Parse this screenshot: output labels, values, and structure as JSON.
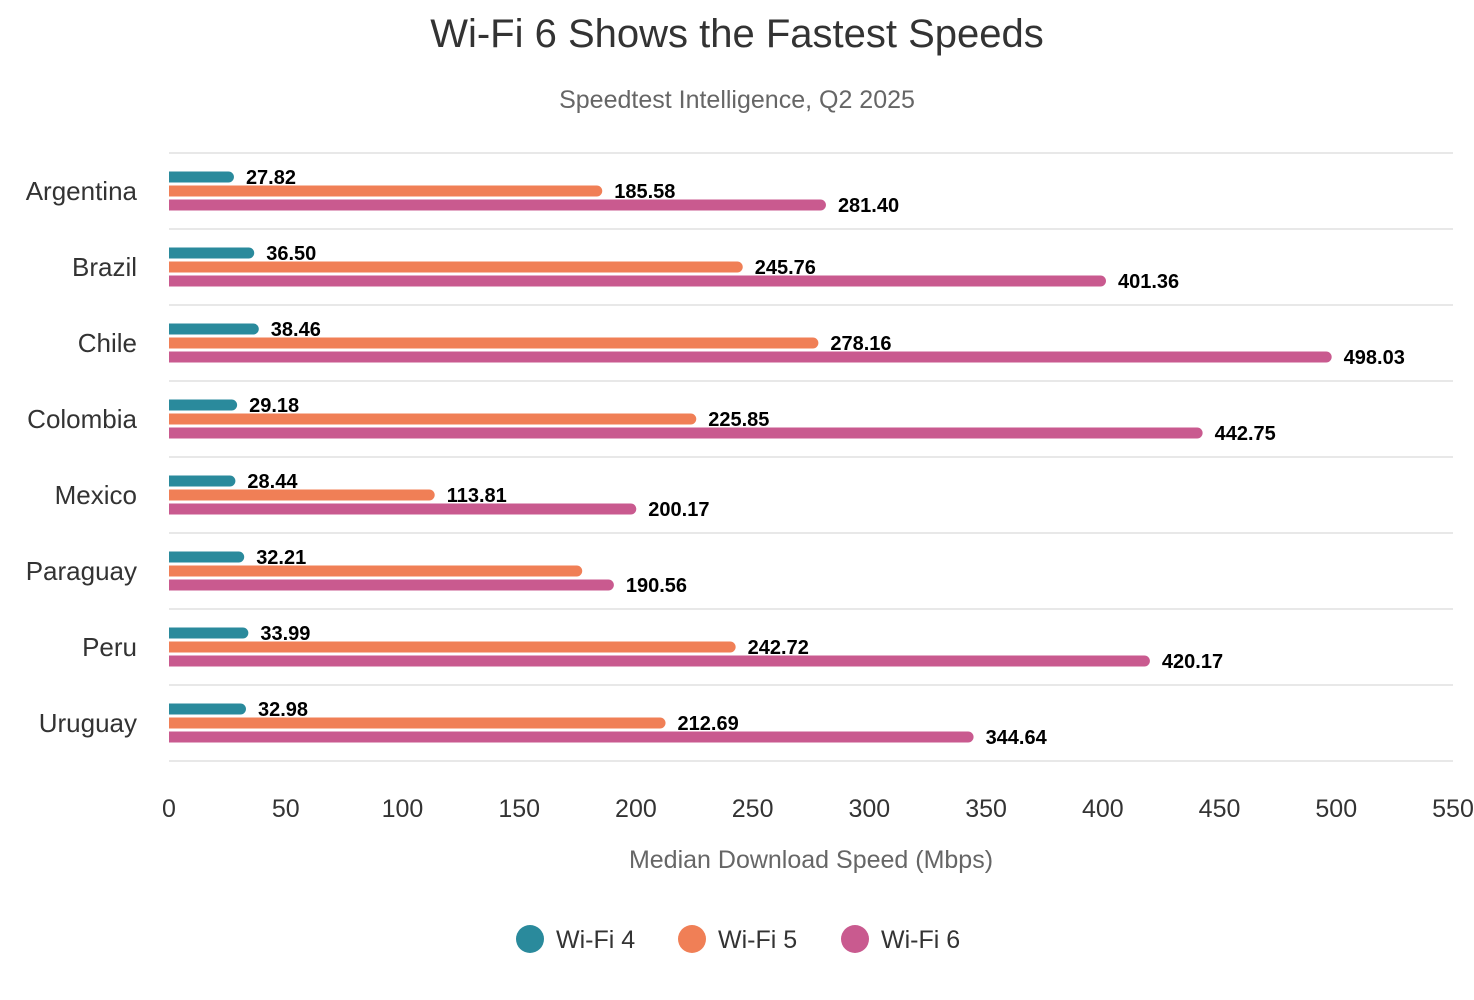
{
  "chart_data": {
    "type": "bar",
    "orientation": "horizontal",
    "title": "Wi-Fi 6 Shows the Fastest Speeds",
    "subtitle": "Speedtest Intelligence, Q2 2025",
    "xlabel": "Median Download Speed (Mbps)",
    "ylabel": "",
    "xlim": [
      0,
      550
    ],
    "xticks": [
      0,
      50,
      100,
      150,
      200,
      250,
      300,
      350,
      400,
      450,
      500,
      550
    ],
    "categories": [
      "Argentina",
      "Brazil",
      "Chile",
      "Colombia",
      "Mexico",
      "Paraguay",
      "Peru",
      "Uruguay"
    ],
    "series": [
      {
        "name": "Wi-Fi 4",
        "color": "#2a8a9c",
        "values": [
          27.82,
          36.5,
          38.46,
          29.18,
          28.44,
          32.21,
          33.99,
          32.98
        ],
        "labels": [
          "27.82",
          "36.50",
          "38.46",
          "29.18",
          "28.44",
          "32.21",
          "33.99",
          "32.98"
        ]
      },
      {
        "name": "Wi-Fi 5",
        "color": "#f07f56",
        "values": [
          185.58,
          245.76,
          278.16,
          225.85,
          113.81,
          177.0,
          242.72,
          212.69
        ],
        "labels": [
          "185.58",
          "245.76",
          "278.16",
          "225.85",
          "113.81",
          null,
          "242.72",
          "212.69"
        ]
      },
      {
        "name": "Wi-Fi 6",
        "color": "#c95a8f",
        "values": [
          281.4,
          401.36,
          498.03,
          442.75,
          200.17,
          190.56,
          420.17,
          344.64
        ],
        "labels": [
          "281.40",
          "401.36",
          "498.03",
          "442.75",
          "200.17",
          "190.56",
          "420.17",
          "344.64"
        ]
      }
    ],
    "grid": "horizontal separators between categories",
    "legend": "bottom-center"
  }
}
